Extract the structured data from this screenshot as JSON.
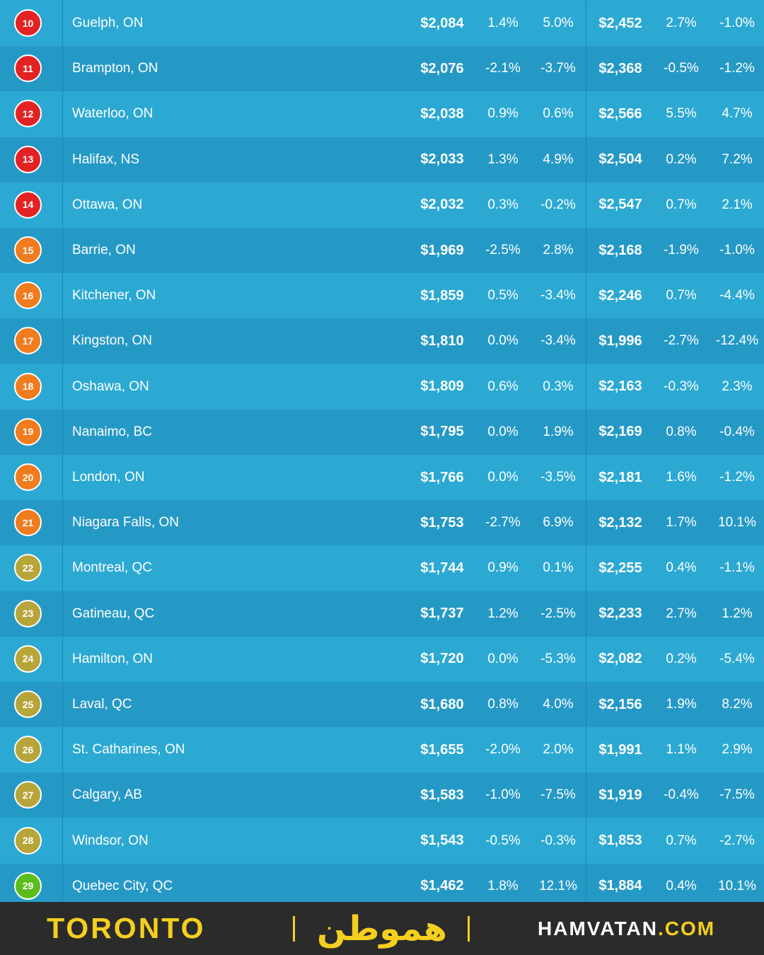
{
  "colors": {
    "red": "#e32224",
    "orange": "#f07c1e",
    "olive": "#b7a53a",
    "green": "#5bbd1c"
  },
  "rows": [
    {
      "rank": "10",
      "city": "Guelph, ON",
      "a": "$2,084",
      "b": "1.4%",
      "c": "5.0%",
      "d": "$2,452",
      "e": "2.7%",
      "f": "-1.0%",
      "badge": "red"
    },
    {
      "rank": "11",
      "city": "Brampton, ON",
      "a": "$2,076",
      "b": "-2.1%",
      "c": "-3.7%",
      "d": "$2,368",
      "e": "-0.5%",
      "f": "-1.2%",
      "badge": "red"
    },
    {
      "rank": "12",
      "city": "Waterloo, ON",
      "a": "$2,038",
      "b": "0.9%",
      "c": "0.6%",
      "d": "$2,566",
      "e": "5.5%",
      "f": "4.7%",
      "badge": "red"
    },
    {
      "rank": "13",
      "city": "Halifax, NS",
      "a": "$2,033",
      "b": "1.3%",
      "c": "4.9%",
      "d": "$2,504",
      "e": "0.2%",
      "f": "7.2%",
      "badge": "red"
    },
    {
      "rank": "14",
      "city": "Ottawa, ON",
      "a": "$2,032",
      "b": "0.3%",
      "c": "-0.2%",
      "d": "$2,547",
      "e": "0.7%",
      "f": "2.1%",
      "badge": "red"
    },
    {
      "rank": "15",
      "city": "Barrie, ON",
      "a": "$1,969",
      "b": "-2.5%",
      "c": "2.8%",
      "d": "$2,168",
      "e": "-1.9%",
      "f": "-1.0%",
      "badge": "orange"
    },
    {
      "rank": "16",
      "city": "Kitchener, ON",
      "a": "$1,859",
      "b": "0.5%",
      "c": "-3.4%",
      "d": "$2,246",
      "e": "0.7%",
      "f": "-4.4%",
      "badge": "orange"
    },
    {
      "rank": "17",
      "city": "Kingston, ON",
      "a": "$1,810",
      "b": "0.0%",
      "c": "-3.4%",
      "d": "$1,996",
      "e": "-2.7%",
      "f": "-12.4%",
      "badge": "orange"
    },
    {
      "rank": "18",
      "city": "Oshawa, ON",
      "a": "$1,809",
      "b": "0.6%",
      "c": "0.3%",
      "d": "$2,163",
      "e": "-0.3%",
      "f": "2.3%",
      "badge": "orange"
    },
    {
      "rank": "19",
      "city": "Nanaimo, BC",
      "a": "$1,795",
      "b": "0.0%",
      "c": "1.9%",
      "d": "$2,169",
      "e": "0.8%",
      "f": "-0.4%",
      "badge": "orange"
    },
    {
      "rank": "20",
      "city": "London, ON",
      "a": "$1,766",
      "b": "0.0%",
      "c": "-3.5%",
      "d": "$2,181",
      "e": "1.6%",
      "f": "-1.2%",
      "badge": "orange"
    },
    {
      "rank": "21",
      "city": "Niagara Falls, ON",
      "a": "$1,753",
      "b": "-2.7%",
      "c": "6.9%",
      "d": "$2,132",
      "e": "1.7%",
      "f": "10.1%",
      "badge": "orange"
    },
    {
      "rank": "22",
      "city": "Montreal, QC",
      "a": "$1,744",
      "b": "0.9%",
      "c": "0.1%",
      "d": "$2,255",
      "e": "0.4%",
      "f": "-1.1%",
      "badge": "olive"
    },
    {
      "rank": "23",
      "city": "Gatineau, QC",
      "a": "$1,737",
      "b": "1.2%",
      "c": "-2.5%",
      "d": "$2,233",
      "e": "2.7%",
      "f": "1.2%",
      "badge": "olive"
    },
    {
      "rank": "24",
      "city": "Hamilton, ON",
      "a": "$1,720",
      "b": "0.0%",
      "c": "-5.3%",
      "d": "$2,082",
      "e": "0.2%",
      "f": "-5.4%",
      "badge": "olive"
    },
    {
      "rank": "25",
      "city": "Laval, QC",
      "a": "$1,680",
      "b": "0.8%",
      "c": "4.0%",
      "d": "$2,156",
      "e": "1.9%",
      "f": "8.2%",
      "badge": "olive"
    },
    {
      "rank": "26",
      "city": "St. Catharines, ON",
      "a": "$1,655",
      "b": "-2.0%",
      "c": "2.0%",
      "d": "$1,991",
      "e": "1.1%",
      "f": "2.9%",
      "badge": "olive"
    },
    {
      "rank": "27",
      "city": "Calgary, AB",
      "a": "$1,583",
      "b": "-1.0%",
      "c": "-7.5%",
      "d": "$1,919",
      "e": "-0.4%",
      "f": "-7.5%",
      "badge": "olive"
    },
    {
      "rank": "28",
      "city": "Windsor, ON",
      "a": "$1,543",
      "b": "-0.5%",
      "c": "-0.3%",
      "d": "$1,853",
      "e": "0.7%",
      "f": "-2.7%",
      "badge": "olive"
    },
    {
      "rank": "29",
      "city": "Quebec City, QC",
      "a": "$1,462",
      "b": "1.8%",
      "c": "12.1%",
      "d": "$1,884",
      "e": "0.4%",
      "f": "10.1%",
      "badge": "green"
    }
  ],
  "footer": {
    "toronto": "TORONTO",
    "logo": "هموطن",
    "site_main": "HAMVATAN",
    "site_dot": ".COM"
  }
}
